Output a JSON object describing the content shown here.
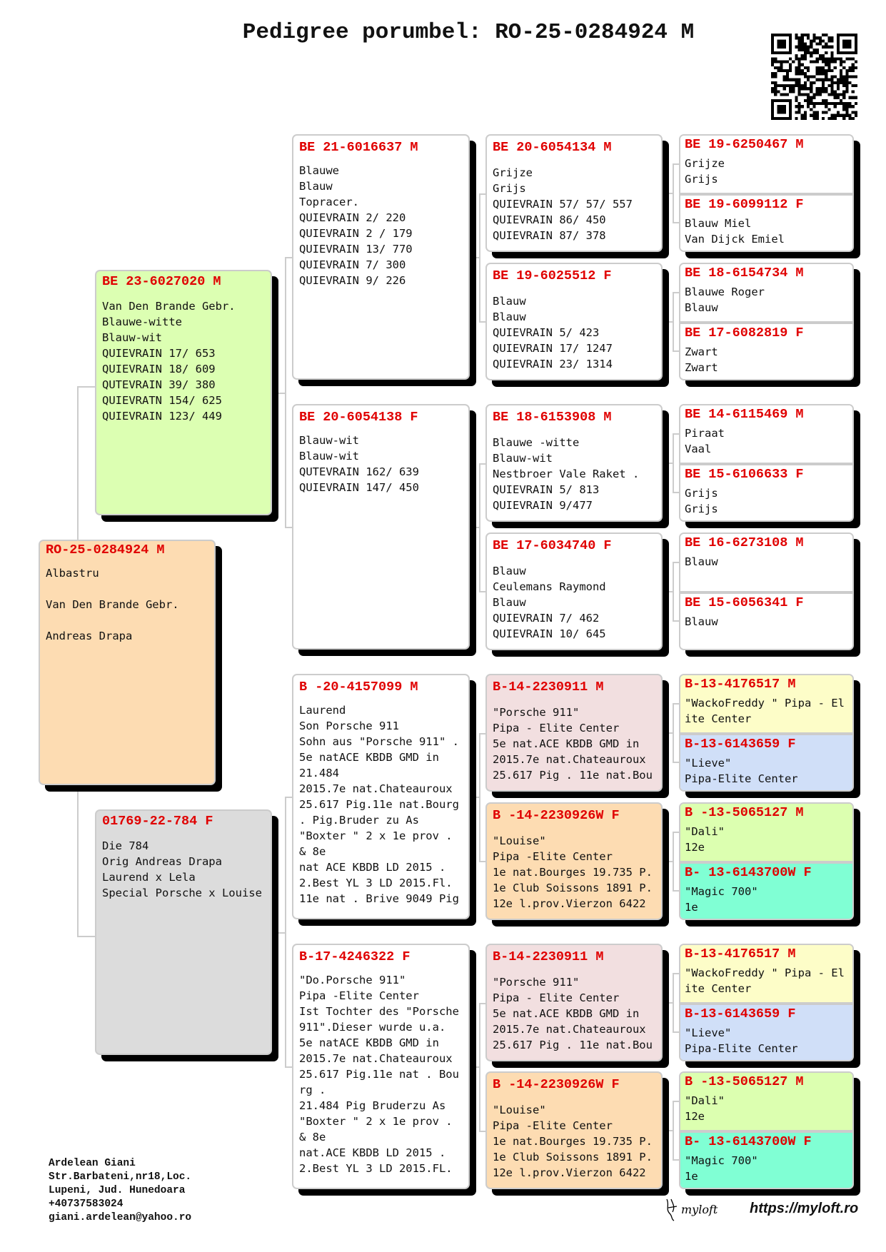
{
  "title": "Pedigree porumbel: RO-25-0284924 M",
  "colors": {
    "ring": "#e00000",
    "white": "#ffffff",
    "peach": "#fddcb2",
    "green": "#dcffb2",
    "grey": "#dcdcdc",
    "pink": "#f2dfe0",
    "yellow": "#fdfdc8",
    "blue": "#d0dff8",
    "lime": "#dcffb0",
    "aqua": "#80ffd4",
    "shadow": "#000000"
  },
  "icons": {
    "qr": "qr-code-icon",
    "logo": "myloft-logo-icon"
  },
  "subject": {
    "ring": "RO-25-0284924 M",
    "bg": "peach",
    "lines": [
      "Albastru",
      "",
      "Van Den Brande Gebr.",
      "",
      "Andreas Drapa"
    ]
  },
  "parents": [
    {
      "ring": "BE 23-6027020 M",
      "bg": "green",
      "lines": [
        "Van Den Brande Gebr.",
        "Blauwe-witte",
        "Blauw-wit",
        "QUIEVRAIN 17/ 653",
        "QUIEVRAIN 18/ 609",
        "QUTEVRAIN 39/ 380",
        "QUIEVRATN 154/ 625",
        "QUIEVRAIN 123/ 449"
      ]
    },
    {
      "ring": "01769-22-784 F",
      "bg": "grey",
      "lines": [
        "Die 784",
        "Orig Andreas Drapa",
        "Laurend x Lela",
        "Special Porsche x Louise"
      ]
    }
  ],
  "grandparents": [
    {
      "ring": "BE 21-6016637 M",
      "bg": "white",
      "lines": [
        "Blauwe",
        "Blauw",
        "Topracer.",
        "QUIEVRAIN 2/ 220",
        "QUIEVRAIN 2 / 179",
        "QUIEVRAIN 13/ 770",
        "QUIEVRAIN 7/ 300",
        "QUIEVRAIN 9/ 226"
      ]
    },
    {
      "ring": "BE 20-6054138 F",
      "bg": "white",
      "lines": [
        "Blauw-wit",
        "Blauw-wit",
        "QUTEVRAIN 162/ 639",
        "QUIEVRAIN 147/ 450"
      ]
    },
    {
      "ring": "B -20-4157099 M",
      "bg": "white",
      "lines": [
        "Laurend",
        "Son Porsche 911",
        "Sohn aus \"Porsche 911\" .",
        "5e natACE KBDB GMD in",
        "21.484",
        "2015.7e nat.Chateauroux",
        "25.617 Pig.11e nat.Bourg",
        ". Pig.Bruder zu As",
        "\"Boxter \" 2 x 1e prov .",
        "& 8e",
        "nat ACE KBDB LD 2015 .",
        "2.Best YL 3 LD 2015.Fl.",
        "11e nat . Brive 9049 Pig"
      ]
    },
    {
      "ring": "B-17-4246322 F",
      "bg": "white",
      "lines": [
        "\"Do.Porsche 911\"",
        "Pipa -Elite Center",
        "Ist Tochter des \"Porsche",
        "911\".Dieser wurde u.a.",
        "5e natACE KBDB GMD in",
        "2015.7e nat.Chateauroux",
        "25.617 Pig.11e nat . Bou",
        "rg .",
        "21.484 Pig Bruderzu As",
        "\"Boxter \" 2 x 1e prov .",
        "& 8e",
        "nat.ACE KBDB LD 2015 .",
        "2.Best YL 3 LD 2015.FL."
      ]
    }
  ],
  "great_grandparents": [
    {
      "ring": "BE 20-6054134 M",
      "bg": "white",
      "lines": [
        "Grijze",
        "Grijs",
        "QUIEVRAIN 57/ 57/ 557",
        "QUIEVRAIN 86/ 450",
        "QUIEVRAIN 87/ 378"
      ]
    },
    {
      "ring": "BE 19-6025512 F",
      "bg": "white",
      "lines": [
        "Blauw",
        "Blauw",
        "QUIEVRAIN 5/ 423",
        "QUIEVRAIN 17/ 1247",
        "QUIEVRAIN 23/ 1314"
      ]
    },
    {
      "ring": "BE 18-6153908 M",
      "bg": "white",
      "lines": [
        "Blauwe -witte",
        "Blauw-wit",
        "Nestbroer Vale Raket .",
        "QUIEVRAIN 5/ 813",
        "QUIEVRAIN 9/477"
      ]
    },
    {
      "ring": "BE 17-6034740 F",
      "bg": "white",
      "lines": [
        "Blauw",
        "Ceulemans Raymond",
        "Blauw",
        "QUIEVRAIN 7/ 462",
        "QUIEVRAIN 10/ 645"
      ]
    },
    {
      "ring": "B-14-2230911 M",
      "bg": "pink",
      "lines": [
        "\"Porsche 911\"",
        "Pipa - Elite Center",
        "5e nat.ACE KBDB GMD in",
        "2015.7e nat.Chateauroux",
        "25.617 Pig . 11e nat.Bou"
      ]
    },
    {
      "ring": "B -14-2230926W F",
      "bg": "peach",
      "lines": [
        "\"Louise\"",
        "Pipa -Elite Center",
        "1e nat.Bourges 19.735 P.",
        "1e Club Soissons 1891 P.",
        "12e l.prov.Vierzon 6422"
      ]
    },
    {
      "ring": "B-14-2230911 M",
      "bg": "pink",
      "lines": [
        "\"Porsche 911\"",
        "Pipa - Elite Center",
        "5e nat.ACE KBDB GMD in",
        "2015.7e nat.Chateauroux",
        "25.617 Pig . 11e nat.Bou"
      ]
    },
    {
      "ring": "B -14-2230926W F",
      "bg": "peach",
      "lines": [
        "\"Louise\"",
        "Pipa -Elite Center",
        "1e nat.Bourges 19.735 P.",
        "1e Club Soissons 1891 P.",
        "12e l.prov.Vierzon 6422"
      ]
    }
  ],
  "gen4": [
    {
      "ring": "BE 19-6250467 M",
      "bg": "white",
      "lines": [
        "Grijze",
        "Grijs"
      ]
    },
    {
      "ring": "BE 19-6099112 F",
      "bg": "white",
      "lines": [
        "Blauw Miel",
        "Van Dijck Emiel"
      ]
    },
    {
      "ring": "BE 18-6154734 M",
      "bg": "white",
      "lines": [
        "Blauwe Roger",
        "Blauw"
      ]
    },
    {
      "ring": "BE 17-6082819 F",
      "bg": "white",
      "lines": [
        "Zwart",
        "Zwart"
      ]
    },
    {
      "ring": "BE 14-6115469 M",
      "bg": "white",
      "lines": [
        "Piraat",
        "Vaal"
      ]
    },
    {
      "ring": "BE 15-6106633 F",
      "bg": "white",
      "lines": [
        "Grijs",
        "Grijs"
      ]
    },
    {
      "ring": "BE 16-6273108 M",
      "bg": "white",
      "lines": [
        "Blauw"
      ]
    },
    {
      "ring": "BE 15-6056341 F",
      "bg": "white",
      "lines": [
        "Blauw"
      ]
    },
    {
      "ring": "B-13-4176517 M",
      "bg": "yellow",
      "lines": [
        "\"WackoFreddy \" Pipa - El",
        "ite Center"
      ]
    },
    {
      "ring": "B-13-6143659 F",
      "bg": "blue",
      "lines": [
        "\"Lieve\"",
        "Pipa-Elite Center"
      ]
    },
    {
      "ring": "B -13-5065127 M",
      "bg": "lime",
      "lines": [
        "\"Dali\"",
        "12e"
      ]
    },
    {
      "ring": "B- 13-6143700W F",
      "bg": "aqua",
      "lines": [
        "\"Magic 700\"",
        "1e"
      ]
    },
    {
      "ring": "B-13-4176517 M",
      "bg": "yellow",
      "lines": [
        "\"WackoFreddy \" Pipa - El",
        "ite Center"
      ]
    },
    {
      "ring": "B-13-6143659 F",
      "bg": "blue",
      "lines": [
        "\"Lieve\"",
        "Pipa-Elite Center"
      ]
    },
    {
      "ring": "B -13-5065127 M",
      "bg": "lime",
      "lines": [
        "\"Dali\"",
        "12e"
      ]
    },
    {
      "ring": "B- 13-6143700W F",
      "bg": "aqua",
      "lines": [
        "\"Magic 700\"",
        "1e"
      ]
    }
  ],
  "footer": {
    "owner_lines": [
      "Ardelean Giani",
      "Str.Barbateni,nr18,Loc.",
      "Lupeni, Jud. Hunedoara",
      "+40737583024",
      "giani.ardelean@yahoo.ro"
    ],
    "logo_text": "myloft",
    "url": "https://myloft.ro"
  }
}
